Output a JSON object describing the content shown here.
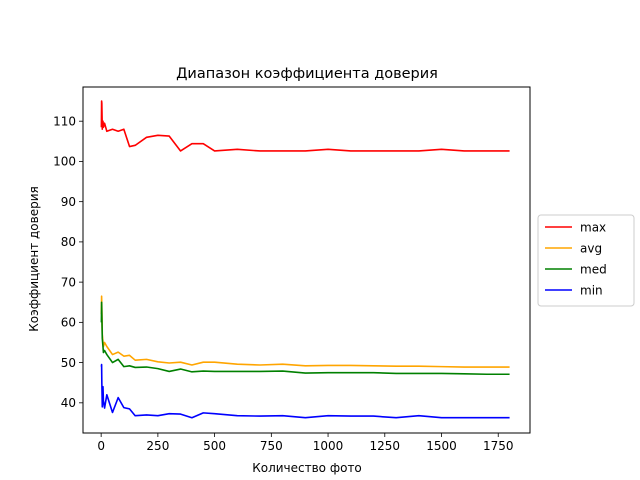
{
  "chart_data": {
    "type": "line",
    "title": "Диапазон коэффициента доверия",
    "xlabel": "Количество фото",
    "ylabel": "Коэффициент доверия",
    "xlim": [
      -80,
      1890
    ],
    "ylim": [
      32.5,
      118.5
    ],
    "xticks": [
      0,
      250,
      500,
      750,
      1000,
      1250,
      1500,
      1750
    ],
    "yticks": [
      40,
      50,
      60,
      70,
      80,
      90,
      100,
      110
    ],
    "grid": false,
    "legend_position": "center-right-outside",
    "series": [
      {
        "name": "max",
        "color": "#ff0000",
        "x": [
          1,
          2,
          3,
          5,
          8,
          10,
          15,
          25,
          50,
          75,
          100,
          125,
          150,
          200,
          250,
          300,
          350,
          400,
          450,
          500,
          600,
          700,
          800,
          900,
          1000,
          1100,
          1200,
          1300,
          1400,
          1500,
          1600,
          1700,
          1800
        ],
        "y": [
          108.5,
          115,
          114.5,
          108,
          110,
          108.5,
          109.5,
          107.5,
          108,
          107.5,
          108,
          103.7,
          104,
          106,
          106.5,
          106.3,
          102.6,
          104.4,
          104.4,
          102.6,
          103,
          102.6,
          102.6,
          102.6,
          103,
          102.6,
          102.6,
          102.6,
          102.6,
          103,
          102.6,
          102.6,
          102.6
        ]
      },
      {
        "name": "avg",
        "color": "#ffa500",
        "x": [
          1,
          2,
          3,
          5,
          8,
          10,
          15,
          25,
          50,
          75,
          100,
          125,
          150,
          200,
          250,
          300,
          350,
          400,
          450,
          500,
          600,
          700,
          800,
          900,
          1000,
          1100,
          1200,
          1300,
          1400,
          1500,
          1600,
          1700,
          1800
        ],
        "y": [
          62,
          66.5,
          64,
          57,
          55,
          54,
          55,
          54,
          52,
          52.6,
          51.6,
          51.8,
          50.6,
          50.8,
          50.2,
          49.9,
          50.1,
          49.4,
          50.1,
          50.1,
          49.6,
          49.4,
          49.6,
          49.2,
          49.3,
          49.3,
          49.2,
          49.1,
          49.1,
          49,
          48.9,
          48.9,
          48.9
        ]
      },
      {
        "name": "med",
        "color": "#008000",
        "x": [
          1,
          2,
          3,
          5,
          8,
          10,
          15,
          25,
          50,
          75,
          100,
          125,
          150,
          200,
          250,
          300,
          350,
          400,
          450,
          500,
          600,
          700,
          800,
          900,
          1000,
          1100,
          1200,
          1300,
          1400,
          1500,
          1600,
          1700,
          1800
        ],
        "y": [
          60,
          65,
          62,
          56,
          54,
          52.5,
          53,
          52,
          50,
          50.8,
          49,
          49.2,
          48.8,
          48.9,
          48.5,
          47.8,
          48.4,
          47.7,
          47.9,
          47.8,
          47.8,
          47.8,
          47.9,
          47.4,
          47.5,
          47.5,
          47.5,
          47.3,
          47.3,
          47.3,
          47.2,
          47.1,
          47.1
        ]
      },
      {
        "name": "min",
        "color": "#0000ff",
        "x": [
          1,
          2,
          3,
          5,
          8,
          10,
          15,
          25,
          50,
          75,
          100,
          125,
          150,
          200,
          250,
          300,
          350,
          400,
          450,
          500,
          600,
          700,
          800,
          900,
          1000,
          1100,
          1200,
          1300,
          1400,
          1500,
          1600,
          1700,
          1800
        ],
        "y": [
          49,
          49.5,
          45,
          39,
          44,
          40.5,
          38.7,
          42,
          37.6,
          41.3,
          38.8,
          38.5,
          36.8,
          37,
          36.8,
          37.3,
          37.2,
          36.3,
          37.5,
          37.3,
          36.8,
          36.7,
          36.8,
          36.3,
          36.8,
          36.7,
          36.7,
          36.3,
          36.8,
          36.3,
          36.3,
          36.3,
          36.3
        ]
      }
    ]
  }
}
